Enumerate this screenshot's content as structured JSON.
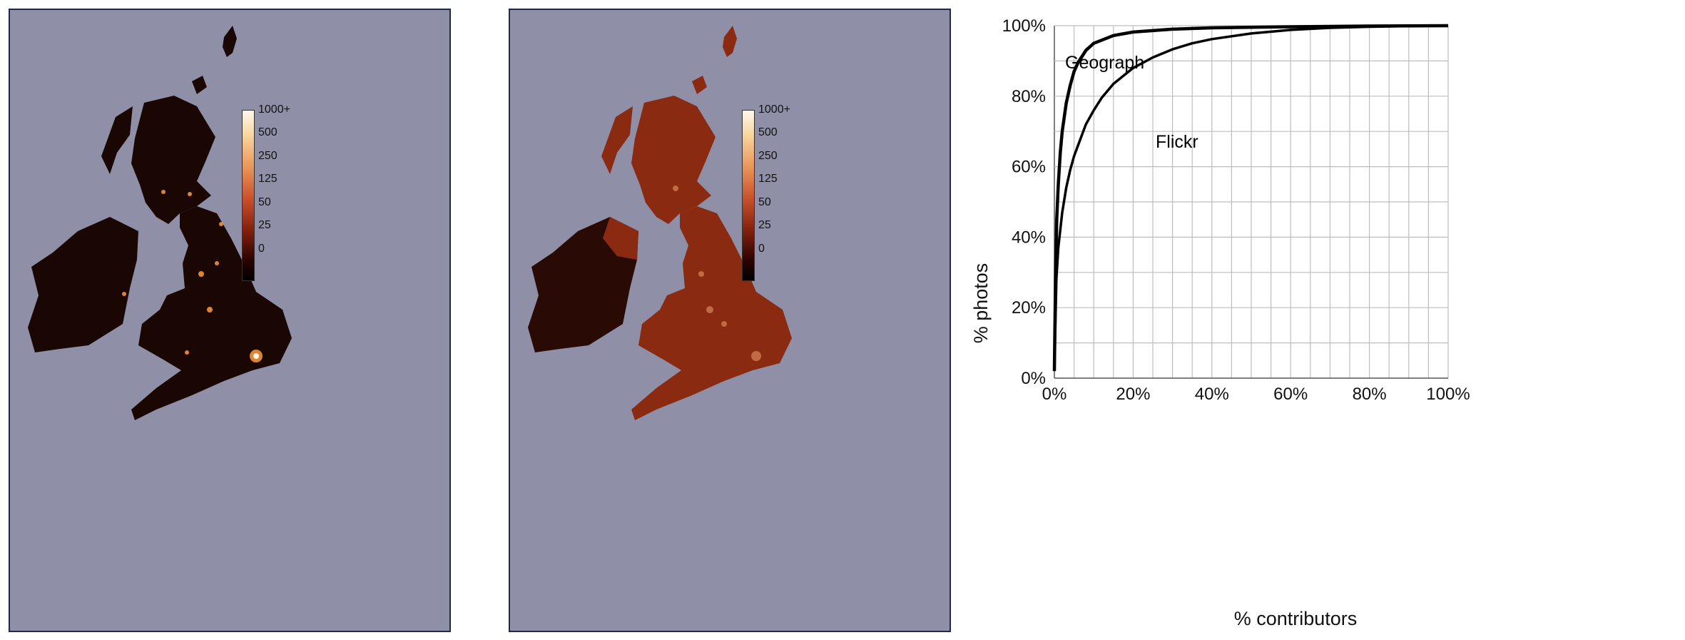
{
  "maps": [
    {
      "colorbar": {
        "ticks": [
          "1000+",
          "500",
          "250",
          "125",
          "50",
          "25",
          "0"
        ]
      },
      "palette": {
        "sea": "#8f90a8",
        "land": "#1a0703",
        "glow": "#ff9a40",
        "hot": "#fff6e0"
      }
    },
    {
      "colorbar": {
        "ticks": [
          "1000+",
          "500",
          "250",
          "125",
          "50",
          "25",
          "0"
        ]
      },
      "palette": {
        "sea": "#8f90a8",
        "land": "#8a2a10",
        "ireland": "#2a0a04",
        "glow": "#f0a070"
      }
    }
  ],
  "chart_data": {
    "type": "line",
    "xlabel": "% contributors",
    "ylabel": "% photos",
    "xlim": [
      0,
      100
    ],
    "ylim": [
      0,
      100
    ],
    "x_ticks": [
      "0%",
      "20%",
      "40%",
      "60%",
      "80%",
      "100%"
    ],
    "y_ticks": [
      "0%",
      "20%",
      "40%",
      "60%",
      "80%",
      "100%"
    ],
    "grid": true,
    "series": [
      {
        "name": "Geograph",
        "color": "#000000",
        "points": [
          [
            0,
            2
          ],
          [
            0.3,
            30
          ],
          [
            0.6,
            45
          ],
          [
            1,
            55
          ],
          [
            1.5,
            64
          ],
          [
            2,
            70
          ],
          [
            3,
            78
          ],
          [
            4,
            83
          ],
          [
            5,
            87
          ],
          [
            6,
            89.5
          ],
          [
            8,
            93
          ],
          [
            10,
            95
          ],
          [
            15,
            97.2
          ],
          [
            20,
            98.2
          ],
          [
            30,
            99
          ],
          [
            40,
            99.4
          ],
          [
            60,
            99.7
          ],
          [
            80,
            99.9
          ],
          [
            100,
            100
          ]
        ]
      },
      {
        "name": "Flickr",
        "color": "#000000",
        "points": [
          [
            0,
            2
          ],
          [
            0.5,
            28
          ],
          [
            1,
            37
          ],
          [
            2,
            47
          ],
          [
            3,
            54
          ],
          [
            4,
            59
          ],
          [
            5,
            63
          ],
          [
            6,
            66
          ],
          [
            8,
            72
          ],
          [
            10,
            76
          ],
          [
            12,
            79.5
          ],
          [
            15,
            83.5
          ],
          [
            20,
            88
          ],
          [
            25,
            91
          ],
          [
            30,
            93.3
          ],
          [
            35,
            95
          ],
          [
            40,
            96.2
          ],
          [
            50,
            97.8
          ],
          [
            60,
            98.8
          ],
          [
            70,
            99.4
          ],
          [
            80,
            99.7
          ],
          [
            90,
            99.9
          ],
          [
            100,
            100
          ]
        ]
      }
    ]
  }
}
